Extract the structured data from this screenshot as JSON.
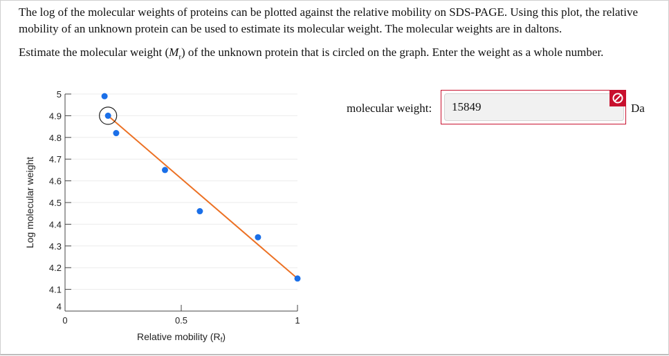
{
  "prompt": {
    "intro": "The log of the molecular weights of proteins can be plotted against the relative mobility on SDS-PAGE. Using this plot, the relative mobility of an unknown protein can be used to estimate its molecular weight. The molecular weights are in daltons.",
    "question_before": "Estimate the molecular weight (",
    "question_symbol": "M",
    "question_subscript": "r",
    "question_after": ") of the unknown protein that is circled on the graph. Enter the weight as a whole number."
  },
  "answer": {
    "label": "molecular weight:",
    "value": "15849",
    "unit": "Da",
    "status": "incorrect",
    "status_icon": "no-entry-icon",
    "status_color": "#c8102e"
  },
  "chart_data": {
    "type": "scatter",
    "xlabel": "Relative mobility (R",
    "xlabel_subscript": "f",
    "xlabel_close": ")",
    "ylabel": "Log molecular weight",
    "xlim": [
      0,
      1
    ],
    "ylim": [
      4,
      5
    ],
    "x_ticks": [
      {
        "value": 0,
        "label": "0"
      },
      {
        "value": 0.5,
        "label": "0.5"
      },
      {
        "value": 1,
        "label": "1"
      }
    ],
    "y_ticks": [
      {
        "value": 4,
        "label": "4"
      },
      {
        "value": 4.1,
        "label": "4.1"
      },
      {
        "value": 4.2,
        "label": "4.2"
      },
      {
        "value": 4.3,
        "label": "4.3"
      },
      {
        "value": 4.4,
        "label": "4.4"
      },
      {
        "value": 4.5,
        "label": "4.5"
      },
      {
        "value": 4.6,
        "label": "4.6"
      },
      {
        "value": 4.7,
        "label": "4.7"
      },
      {
        "value": 4.8,
        "label": "4.8"
      },
      {
        "value": 4.9,
        "label": "4.9"
      },
      {
        "value": 5,
        "label": "5"
      }
    ],
    "grid": true,
    "points": [
      {
        "x": 0.17,
        "y": 4.99
      },
      {
        "x": 0.22,
        "y": 4.82
      },
      {
        "x": 0.43,
        "y": 4.65
      },
      {
        "x": 0.58,
        "y": 4.46
      },
      {
        "x": 0.83,
        "y": 4.34
      },
      {
        "x": 1.0,
        "y": 4.15
      }
    ],
    "unknown": {
      "x": 0.185,
      "y": 4.9
    },
    "fit_line": [
      {
        "x": 0.185,
        "y": 4.9
      },
      {
        "x": 1.0,
        "y": 4.15
      }
    ],
    "colors": {
      "point": "#1a6fe8",
      "line": "#ec7124",
      "grid": "#ebebeb",
      "axis": "#444444"
    }
  }
}
